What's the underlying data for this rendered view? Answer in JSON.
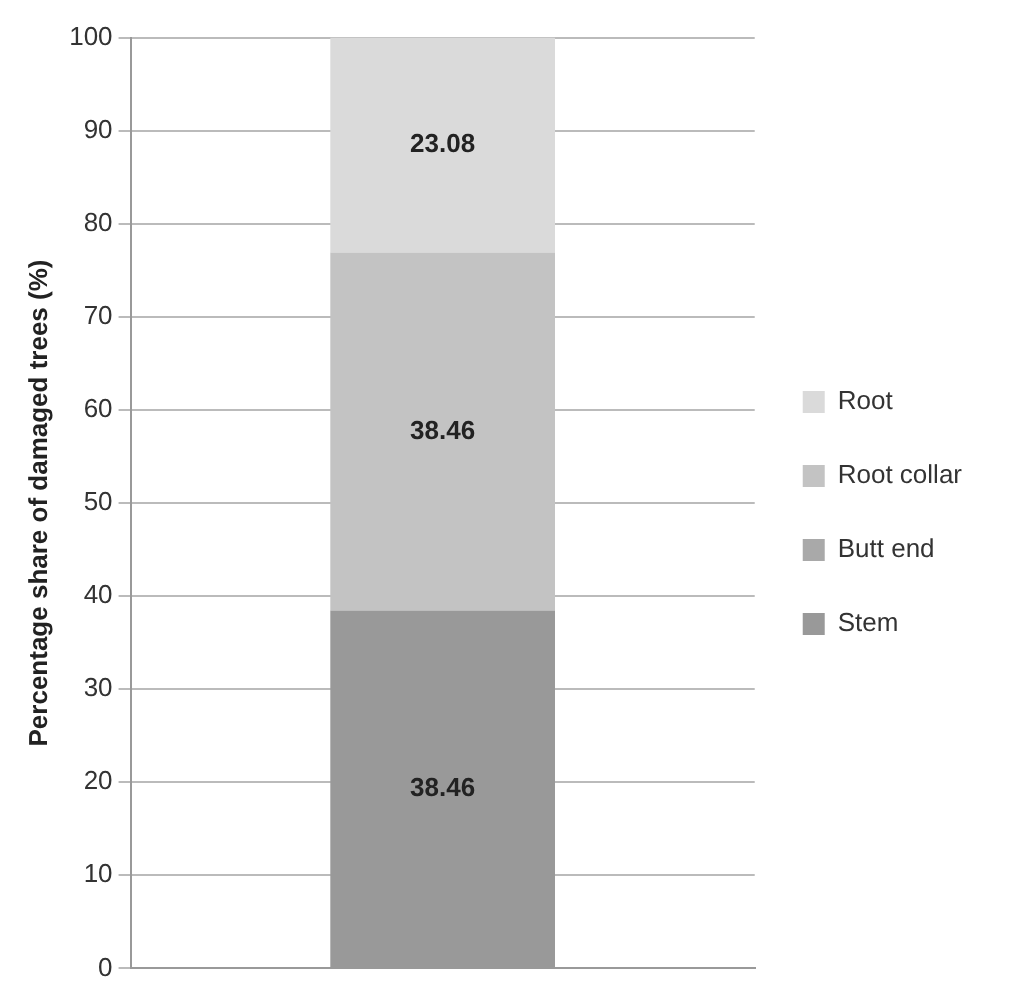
{
  "chart_data": {
    "type": "bar",
    "stacked": true,
    "ylabel": "Percentage share of damaged trees (%)",
    "categories": [
      null
    ],
    "series": [
      {
        "name": "Stem",
        "color": "#999999",
        "values": [
          38.46
        ],
        "value_labels": [
          "38.46"
        ]
      },
      {
        "name": "Butt end",
        "color": "#a9a9a9",
        "values": [
          0
        ],
        "value_labels": [
          null
        ]
      },
      {
        "name": "Root collar",
        "color": "#c3c3c3",
        "values": [
          38.46
        ],
        "value_labels": [
          "38.46"
        ]
      },
      {
        "name": "Root",
        "color": "#dadada",
        "values": [
          23.08
        ],
        "value_labels": [
          "23.08"
        ]
      }
    ],
    "ylim": [
      0,
      100
    ],
    "yticks": [
      0,
      10,
      20,
      30,
      40,
      50,
      60,
      70,
      80,
      90,
      100
    ],
    "grid": "y",
    "legend": "right"
  }
}
